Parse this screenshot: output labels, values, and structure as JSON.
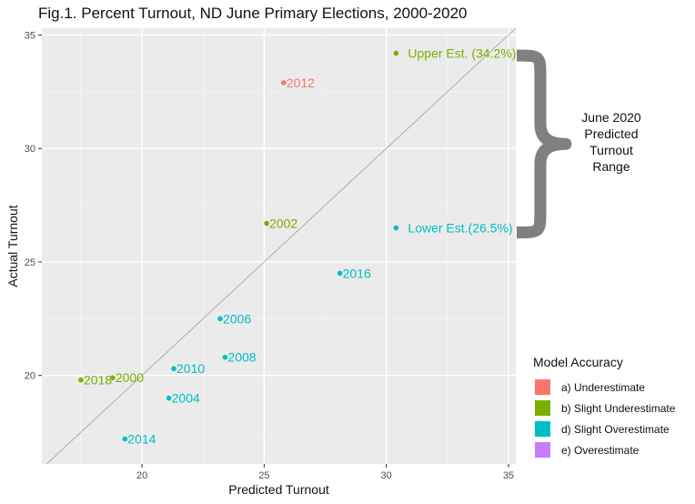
{
  "chart_data": {
    "type": "scatter",
    "title": "Fig.1. Percent Turnout, ND June Primary Elections, 2000-2020",
    "xlabel": "Predicted Turnout",
    "ylabel": "Actual Turnout",
    "xlim": [
      15.9,
      35.3
    ],
    "ylim": [
      16.1,
      35.3
    ],
    "xticks": [
      20,
      25,
      30,
      35
    ],
    "yticks": [
      20,
      25,
      30,
      35
    ],
    "grid": true,
    "reference_line": "y = x",
    "legend": {
      "title": "Model Accuracy",
      "position": "bottom-right",
      "entries": [
        {
          "label": "a) Underestimate",
          "color": "#F8766D"
        },
        {
          "label": "b) Slight Underestimate",
          "color": "#7CAE00"
        },
        {
          "label": "d) Slight Overestimate",
          "color": "#00BFC4"
        },
        {
          "label": "e) Overestimate",
          "color": "#C77CFF"
        }
      ]
    },
    "points": [
      {
        "label": "2000",
        "x": 18.8,
        "y": 19.9,
        "group": "b) Slight Underestimate"
      },
      {
        "label": "2002",
        "x": 25.1,
        "y": 26.7,
        "group": "b) Slight Underestimate"
      },
      {
        "label": "2004",
        "x": 21.1,
        "y": 19.0,
        "group": "d) Slight Overestimate"
      },
      {
        "label": "2006",
        "x": 23.2,
        "y": 22.5,
        "group": "d) Slight Overestimate"
      },
      {
        "label": "2008",
        "x": 23.4,
        "y": 20.8,
        "group": "d) Slight Overestimate"
      },
      {
        "label": "2010",
        "x": 21.3,
        "y": 20.3,
        "group": "d) Slight Overestimate"
      },
      {
        "label": "2012",
        "x": 25.8,
        "y": 32.9,
        "group": "a) Underestimate"
      },
      {
        "label": "2014",
        "x": 19.3,
        "y": 17.2,
        "group": "d) Slight Overestimate"
      },
      {
        "label": "2016",
        "x": 28.1,
        "y": 24.5,
        "group": "d) Slight Overestimate"
      },
      {
        "label": "2018",
        "x": 17.5,
        "y": 19.8,
        "group": "b) Slight Underestimate"
      },
      {
        "label": "Upper Est. (34.2%)",
        "x": 30.4,
        "y": 34.2,
        "group": "b) Slight Underestimate"
      },
      {
        "label": "Lower Est.(26.5%)",
        "x": 30.4,
        "y": 26.5,
        "group": "d) Slight Overestimate"
      }
    ],
    "annotation": {
      "text_lines": [
        "June 2020",
        "Predicted",
        "Turnout",
        "Range"
      ],
      "brace_color": "#808080",
      "y_range": [
        26.3,
        34.1
      ]
    }
  }
}
